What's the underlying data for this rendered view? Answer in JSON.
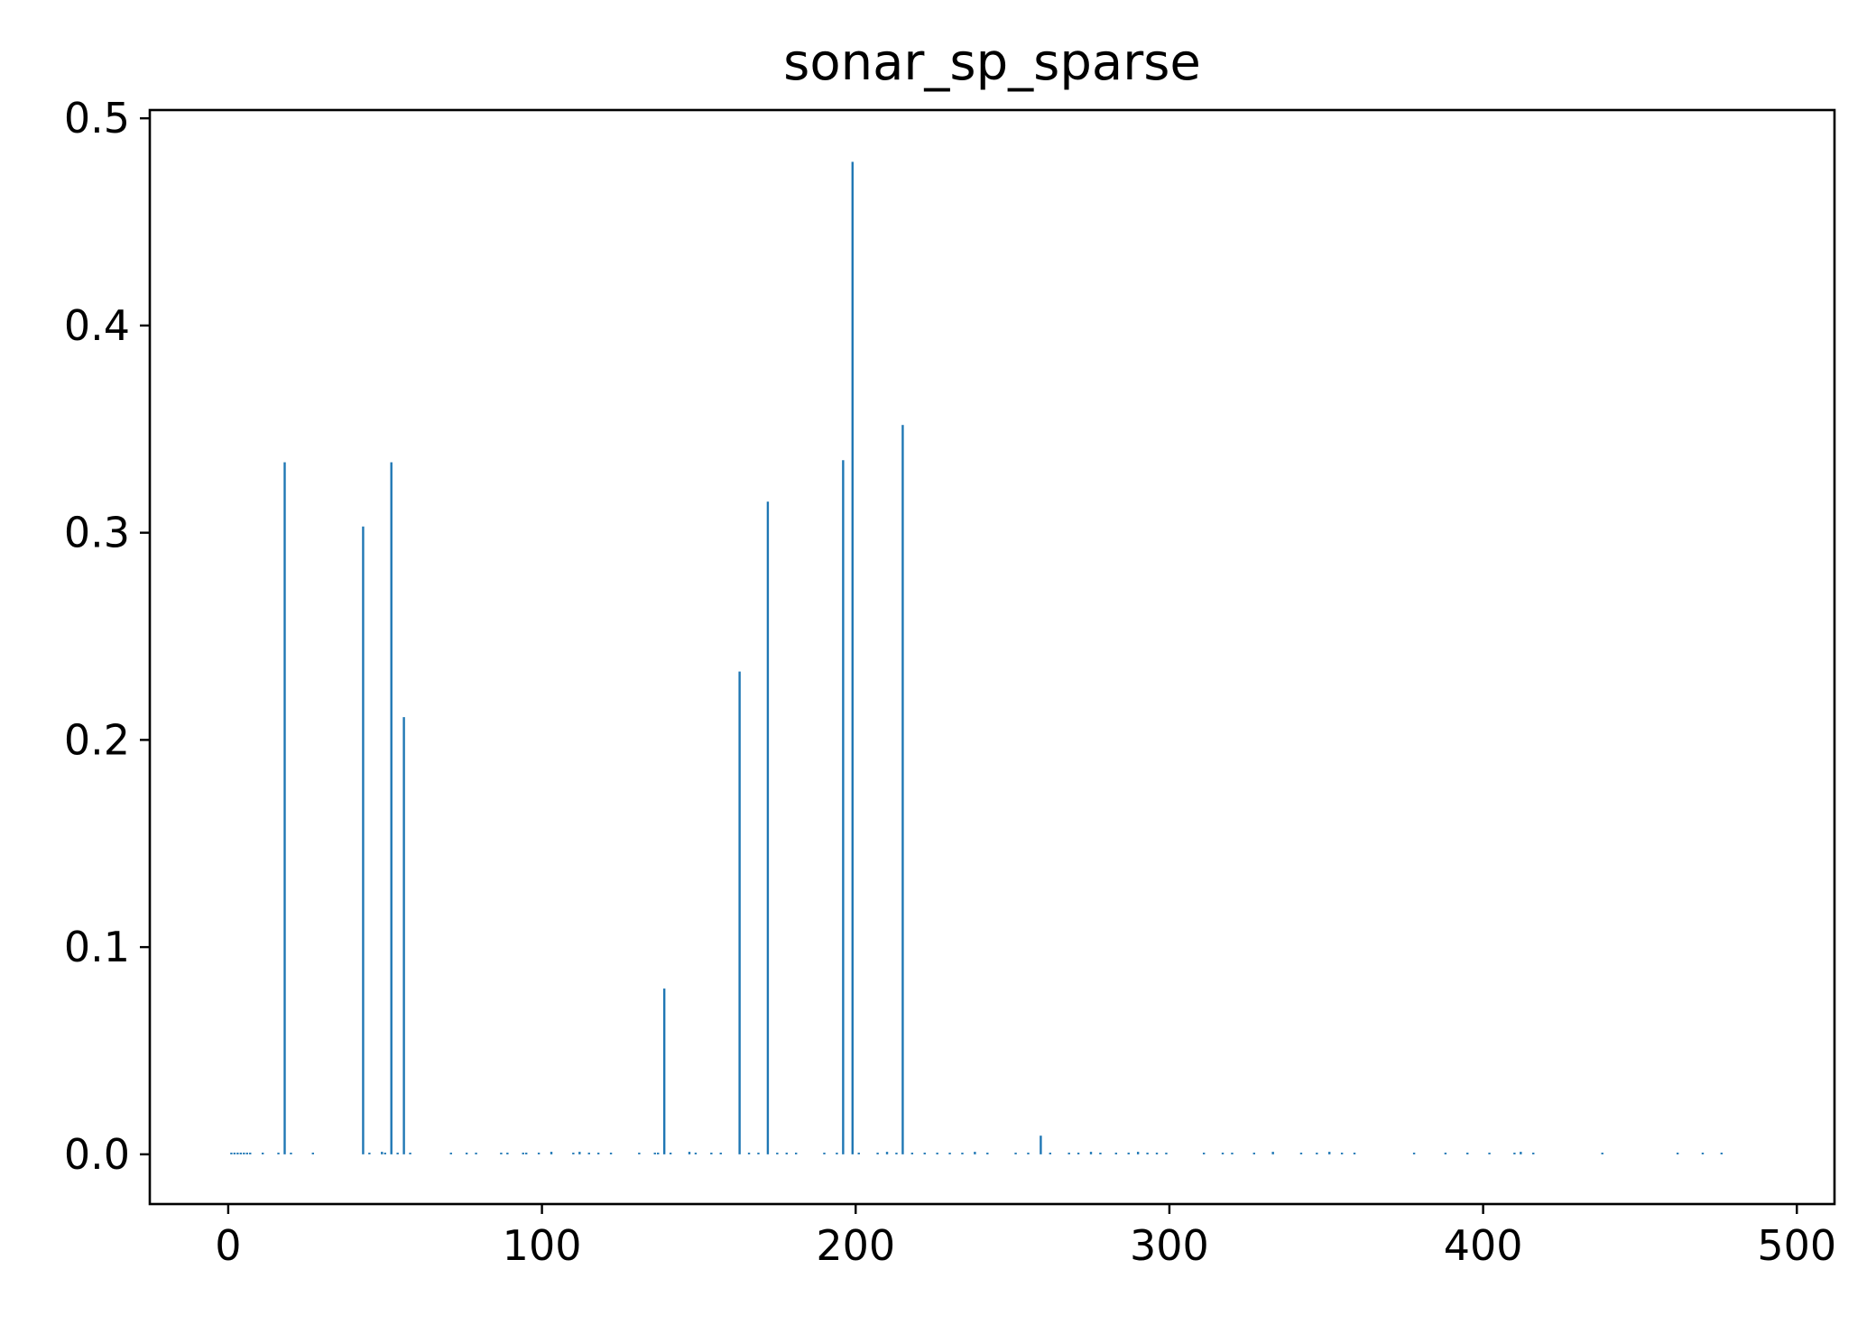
{
  "chart_data": {
    "type": "bar",
    "title": "sonar_sp_sparse",
    "xlabel": "",
    "ylabel": "",
    "xlim": [
      -25,
      512
    ],
    "ylim": [
      -0.024,
      0.504
    ],
    "xticks": [
      0,
      100,
      200,
      300,
      400,
      500
    ],
    "yticks": [
      0.0,
      0.1,
      0.2,
      0.3,
      0.4,
      0.5
    ],
    "xtick_labels": [
      "0",
      "100",
      "200",
      "300",
      "400",
      "500"
    ],
    "ytick_labels": [
      "0.0",
      "0.1",
      "0.2",
      "0.3",
      "0.4",
      "0.5"
    ],
    "grid": false,
    "bar_color": "#1f77b4",
    "bars": [
      {
        "x": 18,
        "value": 0.334
      },
      {
        "x": 43,
        "value": 0.303
      },
      {
        "x": 52,
        "value": 0.334
      },
      {
        "x": 56,
        "value": 0.211
      },
      {
        "x": 139,
        "value": 0.08
      },
      {
        "x": 163,
        "value": 0.233
      },
      {
        "x": 172,
        "value": 0.315
      },
      {
        "x": 196,
        "value": 0.335
      },
      {
        "x": 199,
        "value": 0.479
      },
      {
        "x": 215,
        "value": 0.352
      },
      {
        "x": 259,
        "value": 0.009
      },
      {
        "x": 1,
        "value": 0.0008
      },
      {
        "x": 2,
        "value": 0.0008
      },
      {
        "x": 3,
        "value": 0.0008
      },
      {
        "x": 4,
        "value": 0.0008
      },
      {
        "x": 5,
        "value": 0.0008
      },
      {
        "x": 6,
        "value": 0.0008
      },
      {
        "x": 7,
        "value": 0.0008
      },
      {
        "x": 11,
        "value": 0.0008
      },
      {
        "x": 16,
        "value": 0.0008
      },
      {
        "x": 20,
        "value": 0.0008
      },
      {
        "x": 27,
        "value": 0.0008
      },
      {
        "x": 45,
        "value": 0.0008
      },
      {
        "x": 49,
        "value": 0.0012
      },
      {
        "x": 50,
        "value": 0.0008
      },
      {
        "x": 54,
        "value": 0.0008
      },
      {
        "x": 58,
        "value": 0.0008
      },
      {
        "x": 71,
        "value": 0.0008
      },
      {
        "x": 76,
        "value": 0.0008
      },
      {
        "x": 79,
        "value": 0.0008
      },
      {
        "x": 87,
        "value": 0.0008
      },
      {
        "x": 89,
        "value": 0.0008
      },
      {
        "x": 94,
        "value": 0.0008
      },
      {
        "x": 95,
        "value": 0.0008
      },
      {
        "x": 99,
        "value": 0.0008
      },
      {
        "x": 103,
        "value": 0.0012
      },
      {
        "x": 110,
        "value": 0.0008
      },
      {
        "x": 112,
        "value": 0.0012
      },
      {
        "x": 115,
        "value": 0.0008
      },
      {
        "x": 118,
        "value": 0.0008
      },
      {
        "x": 122,
        "value": 0.0008
      },
      {
        "x": 131,
        "value": 0.0008
      },
      {
        "x": 136,
        "value": 0.0008
      },
      {
        "x": 137,
        "value": 0.0008
      },
      {
        "x": 141,
        "value": 0.0008
      },
      {
        "x": 147,
        "value": 0.0012
      },
      {
        "x": 149,
        "value": 0.0008
      },
      {
        "x": 154,
        "value": 0.0008
      },
      {
        "x": 157,
        "value": 0.0008
      },
      {
        "x": 166,
        "value": 0.0008
      },
      {
        "x": 169,
        "value": 0.0008
      },
      {
        "x": 175,
        "value": 0.0008
      },
      {
        "x": 178,
        "value": 0.0008
      },
      {
        "x": 181,
        "value": 0.0008
      },
      {
        "x": 190,
        "value": 0.0008
      },
      {
        "x": 194,
        "value": 0.0008
      },
      {
        "x": 201,
        "value": 0.0008
      },
      {
        "x": 207,
        "value": 0.0008
      },
      {
        "x": 210,
        "value": 0.0012
      },
      {
        "x": 213,
        "value": 0.0008
      },
      {
        "x": 218,
        "value": 0.0008
      },
      {
        "x": 222,
        "value": 0.0008
      },
      {
        "x": 226,
        "value": 0.0008
      },
      {
        "x": 230,
        "value": 0.0008
      },
      {
        "x": 234,
        "value": 0.0008
      },
      {
        "x": 238,
        "value": 0.0012
      },
      {
        "x": 242,
        "value": 0.0008
      },
      {
        "x": 251,
        "value": 0.0008
      },
      {
        "x": 255,
        "value": 0.0008
      },
      {
        "x": 262,
        "value": 0.0008
      },
      {
        "x": 268,
        "value": 0.0008
      },
      {
        "x": 271,
        "value": 0.0008
      },
      {
        "x": 275,
        "value": 0.0012
      },
      {
        "x": 278,
        "value": 0.0008
      },
      {
        "x": 283,
        "value": 0.0008
      },
      {
        "x": 287,
        "value": 0.0008
      },
      {
        "x": 290,
        "value": 0.0012
      },
      {
        "x": 293,
        "value": 0.0008
      },
      {
        "x": 296,
        "value": 0.0008
      },
      {
        "x": 299,
        "value": 0.0008
      },
      {
        "x": 311,
        "value": 0.0008
      },
      {
        "x": 317,
        "value": 0.0008
      },
      {
        "x": 320,
        "value": 0.0008
      },
      {
        "x": 327,
        "value": 0.0008
      },
      {
        "x": 333,
        "value": 0.0012
      },
      {
        "x": 342,
        "value": 0.0008
      },
      {
        "x": 347,
        "value": 0.0008
      },
      {
        "x": 351,
        "value": 0.0012
      },
      {
        "x": 355,
        "value": 0.0008
      },
      {
        "x": 359,
        "value": 0.0008
      },
      {
        "x": 378,
        "value": 0.0008
      },
      {
        "x": 388,
        "value": 0.0008
      },
      {
        "x": 395,
        "value": 0.0008
      },
      {
        "x": 402,
        "value": 0.0008
      },
      {
        "x": 410,
        "value": 0.0008
      },
      {
        "x": 412,
        "value": 0.0012
      },
      {
        "x": 416,
        "value": 0.0008
      },
      {
        "x": 438,
        "value": 0.0008
      },
      {
        "x": 462,
        "value": 0.0008
      },
      {
        "x": 470,
        "value": 0.0008
      },
      {
        "x": 476,
        "value": 0.0008
      }
    ]
  }
}
